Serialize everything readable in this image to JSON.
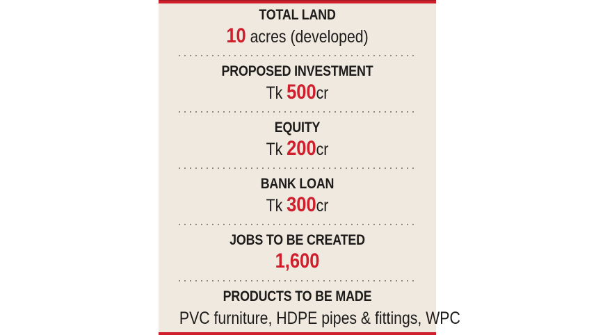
{
  "colors": {
    "accent_red": "#cf1f2d",
    "panel_background": "#efe9e0",
    "text_black": "#1c1b19",
    "divider_gray": "#8f8b82",
    "page_background": "#ffffff"
  },
  "infographic": {
    "sections": [
      {
        "heading": "TOTAL LAND",
        "value_prefix": "",
        "value_number": "10",
        "value_suffix": " acres (developed)"
      },
      {
        "heading": "PROPOSED INVESTMENT",
        "value_prefix": "Tk ",
        "value_number": "500",
        "value_suffix": "cr"
      },
      {
        "heading": "EQUITY",
        "value_prefix": "Tk ",
        "value_number": "200",
        "value_suffix": "cr"
      },
      {
        "heading": "BANK LOAN",
        "value_prefix": "Tk ",
        "value_number": "300",
        "value_suffix": "cr"
      },
      {
        "heading": "JOBS TO BE CREATED",
        "value_prefix": "",
        "value_number": "1,600",
        "value_suffix": ""
      },
      {
        "heading": "PRODUCTS TO BE MADE",
        "value_prefix": "",
        "value_number": "",
        "value_suffix": "PVC furniture, HDPE pipes & fittings, WPC"
      }
    ]
  },
  "chart_data": {
    "type": "table",
    "title": "",
    "rows": [
      {
        "label": "TOTAL LAND",
        "value": "10 acres (developed)"
      },
      {
        "label": "PROPOSED INVESTMENT",
        "value": "Tk 500cr"
      },
      {
        "label": "EQUITY",
        "value": "Tk 200cr"
      },
      {
        "label": "BANK LOAN",
        "value": "Tk 300cr"
      },
      {
        "label": "JOBS TO BE CREATED",
        "value": "1,600"
      },
      {
        "label": "PRODUCTS TO BE MADE",
        "value": "PVC furniture, HDPE pipes & fittings, WPC"
      }
    ]
  }
}
